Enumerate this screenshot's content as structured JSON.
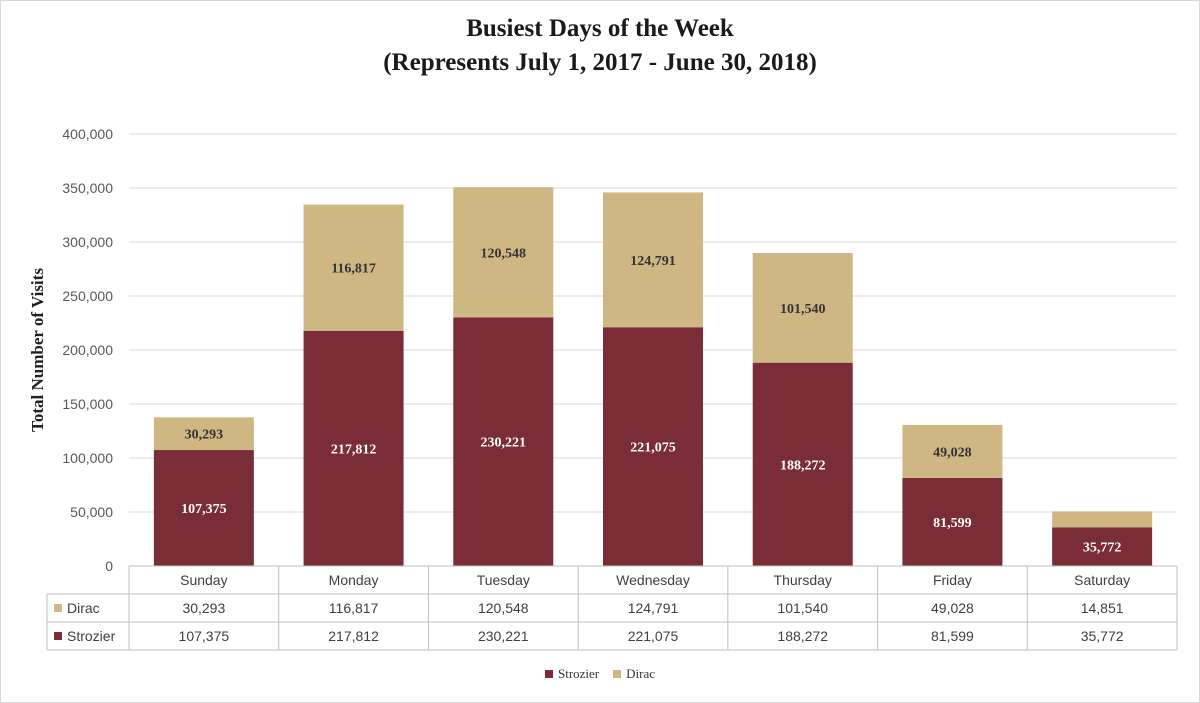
{
  "chart_data": {
    "type": "bar",
    "stacked": true,
    "title": "Busiest Days of  the Week",
    "subtitle": "(Represents July 1, 2017 - June 30, 2018)",
    "xlabel": "",
    "ylabel": "Total Number of Visits",
    "ylim": [
      0,
      400000
    ],
    "ytick_step": 50000,
    "categories": [
      "Sunday",
      "Monday",
      "Tuesday",
      "Wednesday",
      "Thursday",
      "Friday",
      "Saturday"
    ],
    "series": [
      {
        "name": "Strozier",
        "color": "#7b2d37",
        "label_color": "#ffffff",
        "values": [
          107375,
          217812,
          230221,
          221075,
          188272,
          81599,
          35772
        ]
      },
      {
        "name": "Dirac",
        "color": "#cfb784",
        "label_color": "#333333",
        "values": [
          30293,
          116817,
          120548,
          124791,
          101540,
          49028,
          14851
        ]
      }
    ],
    "table_rows": [
      "Dirac",
      "Strozier"
    ],
    "data_labels_hidden": [
      "Dirac:Saturday"
    ],
    "grid": true,
    "legend": "bottom",
    "legend_order": [
      "Strozier",
      "Dirac"
    ]
  }
}
